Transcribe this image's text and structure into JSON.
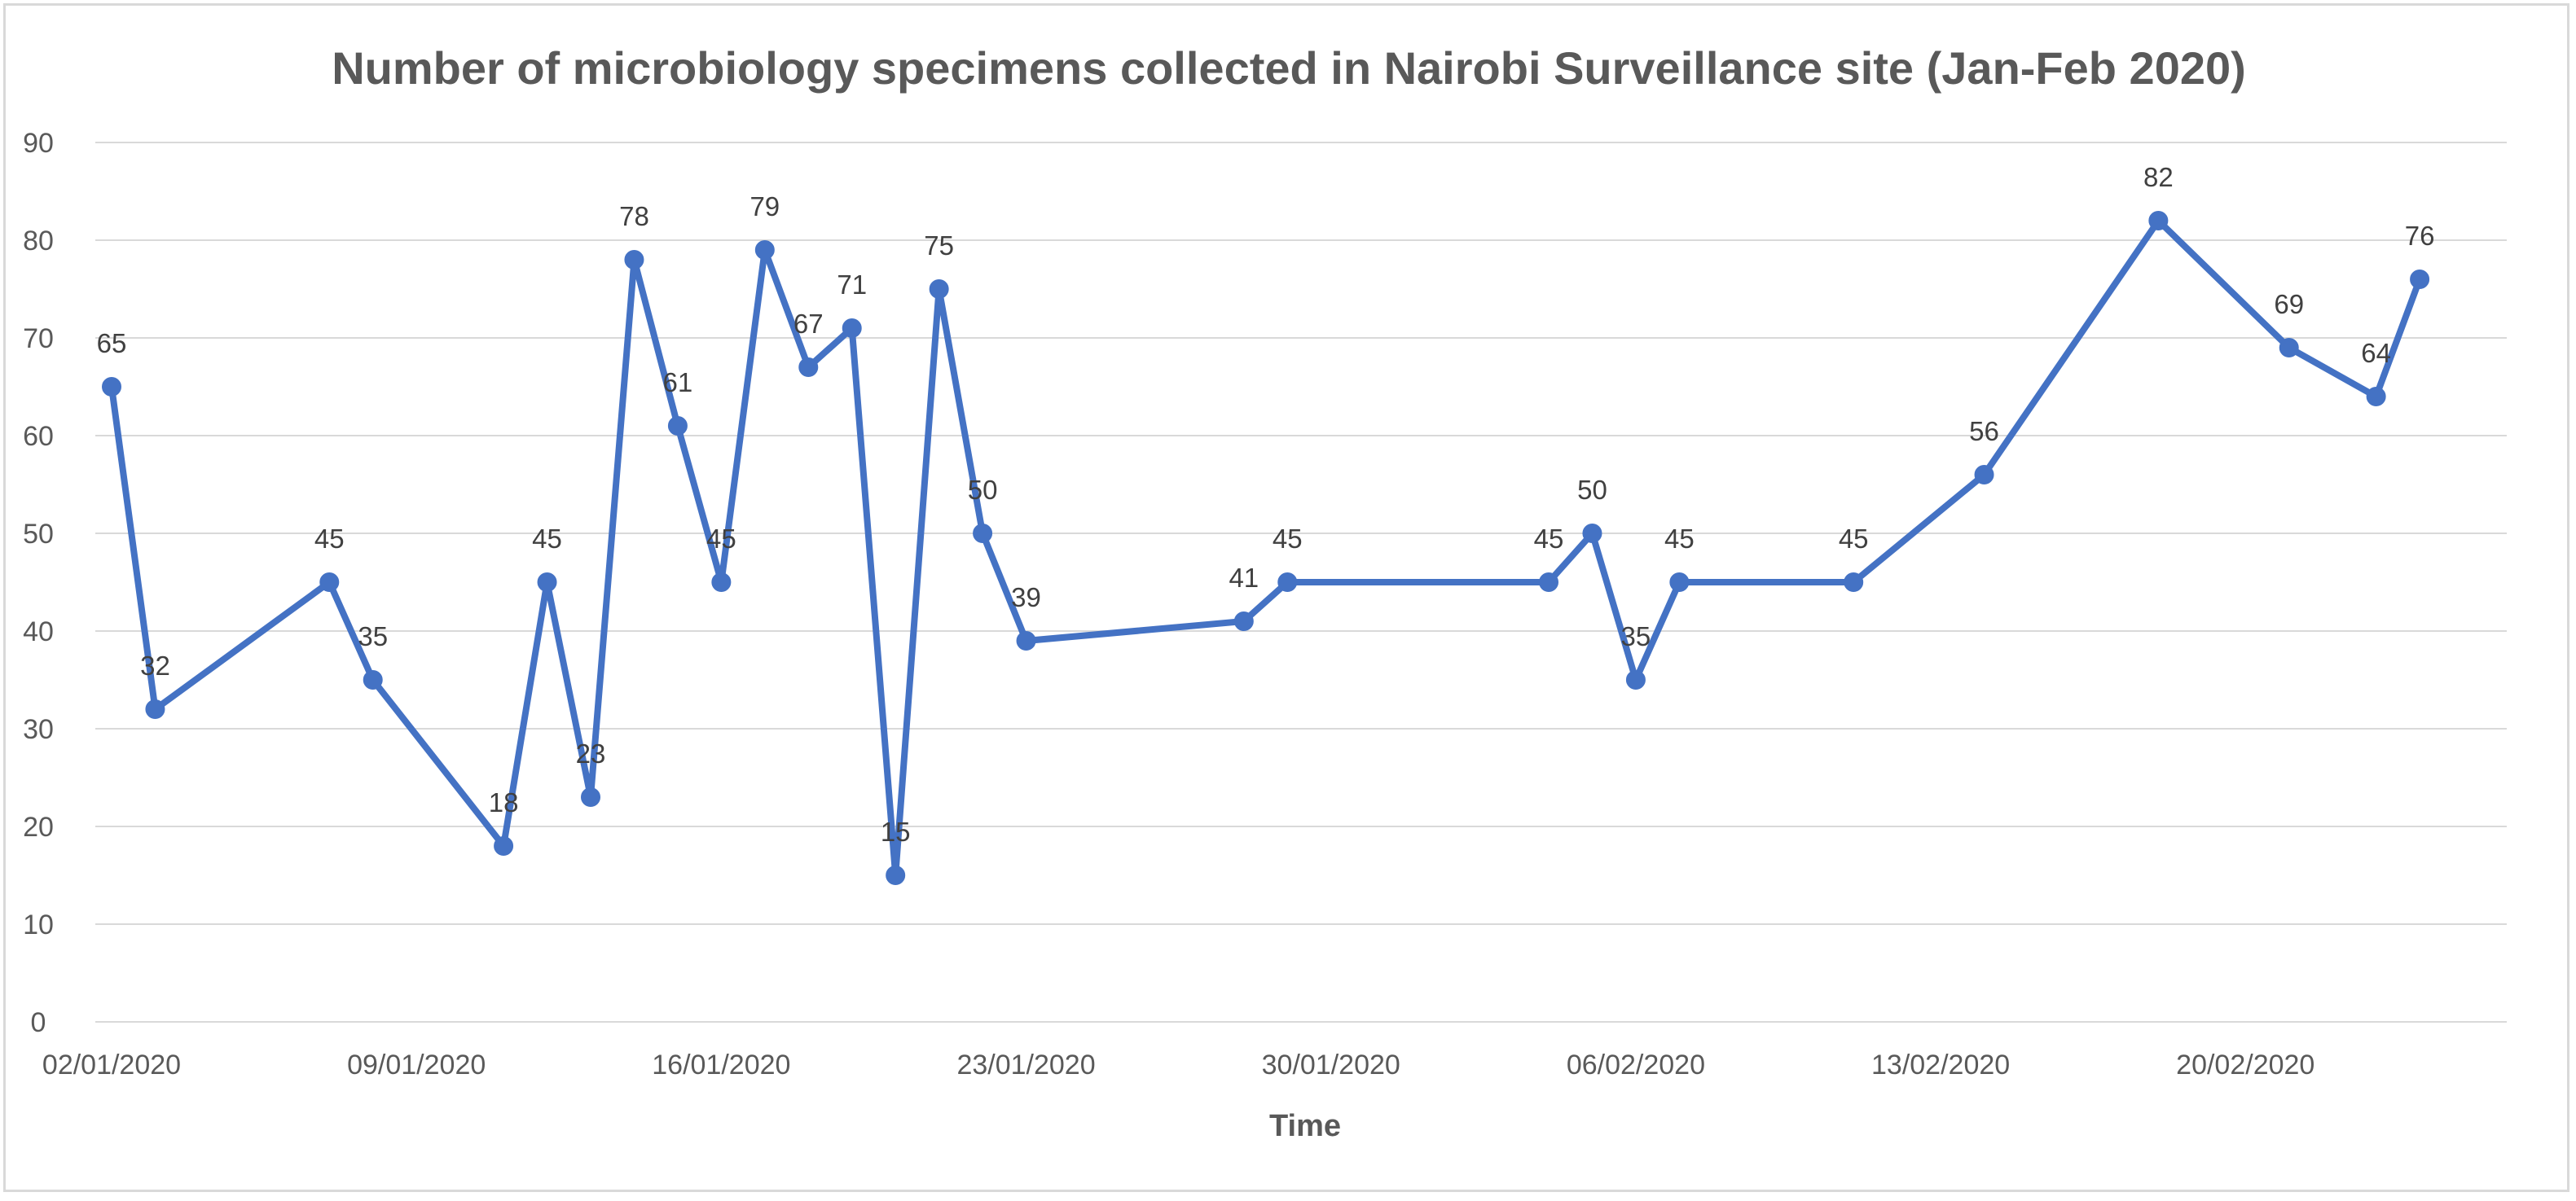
{
  "chart_data": {
    "type": "line",
    "title": "Number of microbiology specimens collected in Nairobi Surveillance site (Jan-Feb 2020)",
    "xlabel": "Time",
    "ylabel": "",
    "ylim": [
      0,
      90
    ],
    "yticks": [
      "0",
      "10",
      "20",
      "30",
      "40",
      "50",
      "60",
      "70",
      "80",
      "90"
    ],
    "xlim": [
      "2020-01-02",
      "2020-02-25"
    ],
    "xtick_labels": [
      {
        "date": "2020-01-02",
        "label": "02/01/2020"
      },
      {
        "date": "2020-01-09",
        "label": "09/01/2020"
      },
      {
        "date": "2020-01-16",
        "label": "16/01/2020"
      },
      {
        "date": "2020-01-23",
        "label": "23/01/2020"
      },
      {
        "date": "2020-01-30",
        "label": "30/01/2020"
      },
      {
        "date": "2020-02-06",
        "label": "06/02/2020"
      },
      {
        "date": "2020-02-13",
        "label": "13/02/2020"
      },
      {
        "date": "2020-02-20",
        "label": "20/02/2020"
      }
    ],
    "grid": true,
    "legend": "none",
    "line_color": "#4472c4",
    "series": [
      {
        "points": [
          {
            "x": "2020-01-02",
            "y": 65
          },
          {
            "x": "2020-01-03",
            "y": 32
          },
          {
            "x": "2020-01-07",
            "y": 45
          },
          {
            "x": "2020-01-08",
            "y": 35
          },
          {
            "x": "2020-01-11",
            "y": 18
          },
          {
            "x": "2020-01-12",
            "y": 45
          },
          {
            "x": "2020-01-13",
            "y": 23
          },
          {
            "x": "2020-01-14",
            "y": 78
          },
          {
            "x": "2020-01-15",
            "y": 61
          },
          {
            "x": "2020-01-16",
            "y": 45
          },
          {
            "x": "2020-01-17",
            "y": 79
          },
          {
            "x": "2020-01-18",
            "y": 67
          },
          {
            "x": "2020-01-19",
            "y": 71
          },
          {
            "x": "2020-01-20",
            "y": 15
          },
          {
            "x": "2020-01-21",
            "y": 75
          },
          {
            "x": "2020-01-22",
            "y": 50
          },
          {
            "x": "2020-01-23",
            "y": 39
          },
          {
            "x": "2020-01-28",
            "y": 41
          },
          {
            "x": "2020-01-29",
            "y": 45
          },
          {
            "x": "2020-02-04",
            "y": 45
          },
          {
            "x": "2020-02-05",
            "y": 50
          },
          {
            "x": "2020-02-06",
            "y": 35
          },
          {
            "x": "2020-02-07",
            "y": 45
          },
          {
            "x": "2020-02-11",
            "y": 45
          },
          {
            "x": "2020-02-14",
            "y": 56
          },
          {
            "x": "2020-02-18",
            "y": 82
          },
          {
            "x": "2020-02-21",
            "y": 69
          },
          {
            "x": "2020-02-23",
            "y": 64
          },
          {
            "x": "2020-02-24",
            "y": 76
          }
        ]
      }
    ]
  }
}
